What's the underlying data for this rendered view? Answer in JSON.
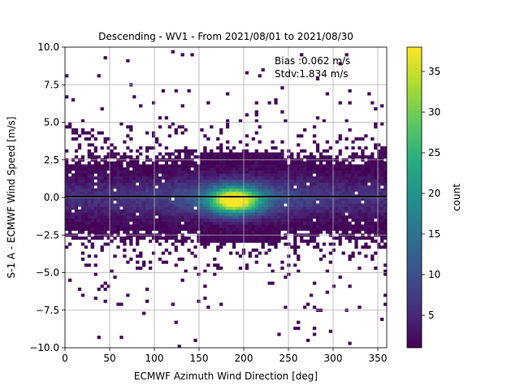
{
  "chart_data": {
    "type": "heatmap",
    "title": "Descending - WV1 - From 2021/08/01 to 2021/08/30",
    "xlabel": "ECMWF Azimuth Wind Direction [deg]",
    "ylabel": "S-1 A - ECMWF Wind Speed [m/s]",
    "xlim": [
      0,
      360
    ],
    "ylim": [
      -10,
      10
    ],
    "xticks": [
      "0",
      "50",
      "100",
      "150",
      "200",
      "250",
      "300",
      "350"
    ],
    "yticks": [
      "−10.0",
      "−7.5",
      "−5.0",
      "−2.5",
      "0.0",
      "2.5",
      "5.0",
      "7.5",
      "10.0"
    ],
    "grid": true,
    "zero_line_y": 0.0,
    "annotation": [
      "Bias :0.062 m/s",
      "Stdv:1.834 m/s"
    ],
    "colorbar": {
      "label": "count",
      "colormap": "viridis",
      "range": [
        1,
        38
      ],
      "ticks": [
        "5",
        "10",
        "15",
        "20",
        "25",
        "30",
        "35"
      ]
    },
    "bin_width": {
      "x_deg": 3.6,
      "y_ms": 0.2
    },
    "density_model": {
      "core": {
        "x_center": 190,
        "y_center": -0.2,
        "peak_count": 33
      },
      "band_y_halfwidth": 2.8,
      "max_count": 38
    }
  }
}
